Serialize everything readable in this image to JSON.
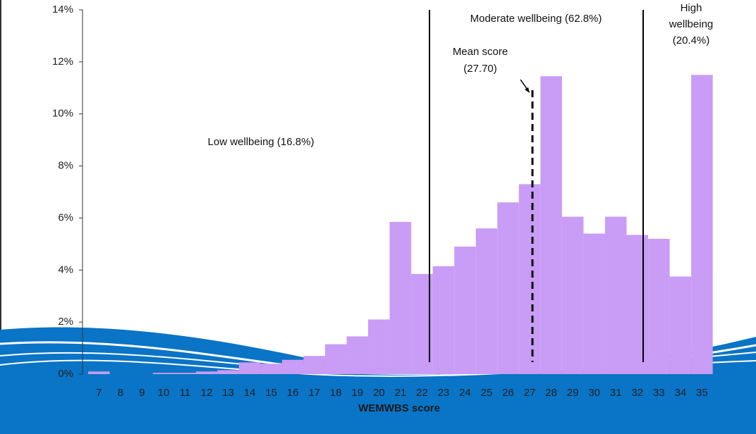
{
  "chart_data": {
    "type": "bar",
    "x_label": "WEMWBS score",
    "categories": [
      "7",
      "8",
      "9",
      "10",
      "11",
      "12",
      "13",
      "14",
      "15",
      "16",
      "17",
      "18",
      "19",
      "20",
      "21",
      "22",
      "23",
      "24",
      "25",
      "26",
      "27",
      "28",
      "29",
      "30",
      "31",
      "32",
      "33",
      "34",
      "35"
    ],
    "values": [
      0.1,
      0,
      0,
      0.05,
      0.05,
      0.1,
      0.15,
      0.45,
      0.4,
      0.55,
      0.7,
      1.15,
      1.45,
      2.1,
      5.85,
      3.85,
      4.15,
      4.9,
      5.6,
      6.6,
      7.3,
      11.45,
      6.05,
      5.4,
      6.05,
      5.35,
      5.2,
      3.75,
      11.5
    ],
    "color": "#c99cf6",
    "ylim": [
      0,
      14
    ],
    "yticks": [
      {
        "value": 0,
        "label": "0%"
      },
      {
        "value": 2,
        "label": "2%"
      },
      {
        "value": 4,
        "label": "4%"
      },
      {
        "value": 6,
        "label": "6%"
      },
      {
        "value": 8,
        "label": "8%"
      },
      {
        "value": 10,
        "label": "10%"
      },
      {
        "value": 12,
        "label": "12%"
      },
      {
        "value": 14,
        "label": "14%"
      }
    ],
    "annotations": [
      "Low wellbeing (16.8%)",
      "Moderate wellbeing (62.8%)",
      "Mean score",
      "(27.70)",
      "High",
      "wellbeing",
      "(20.4%)"
    ]
  }
}
